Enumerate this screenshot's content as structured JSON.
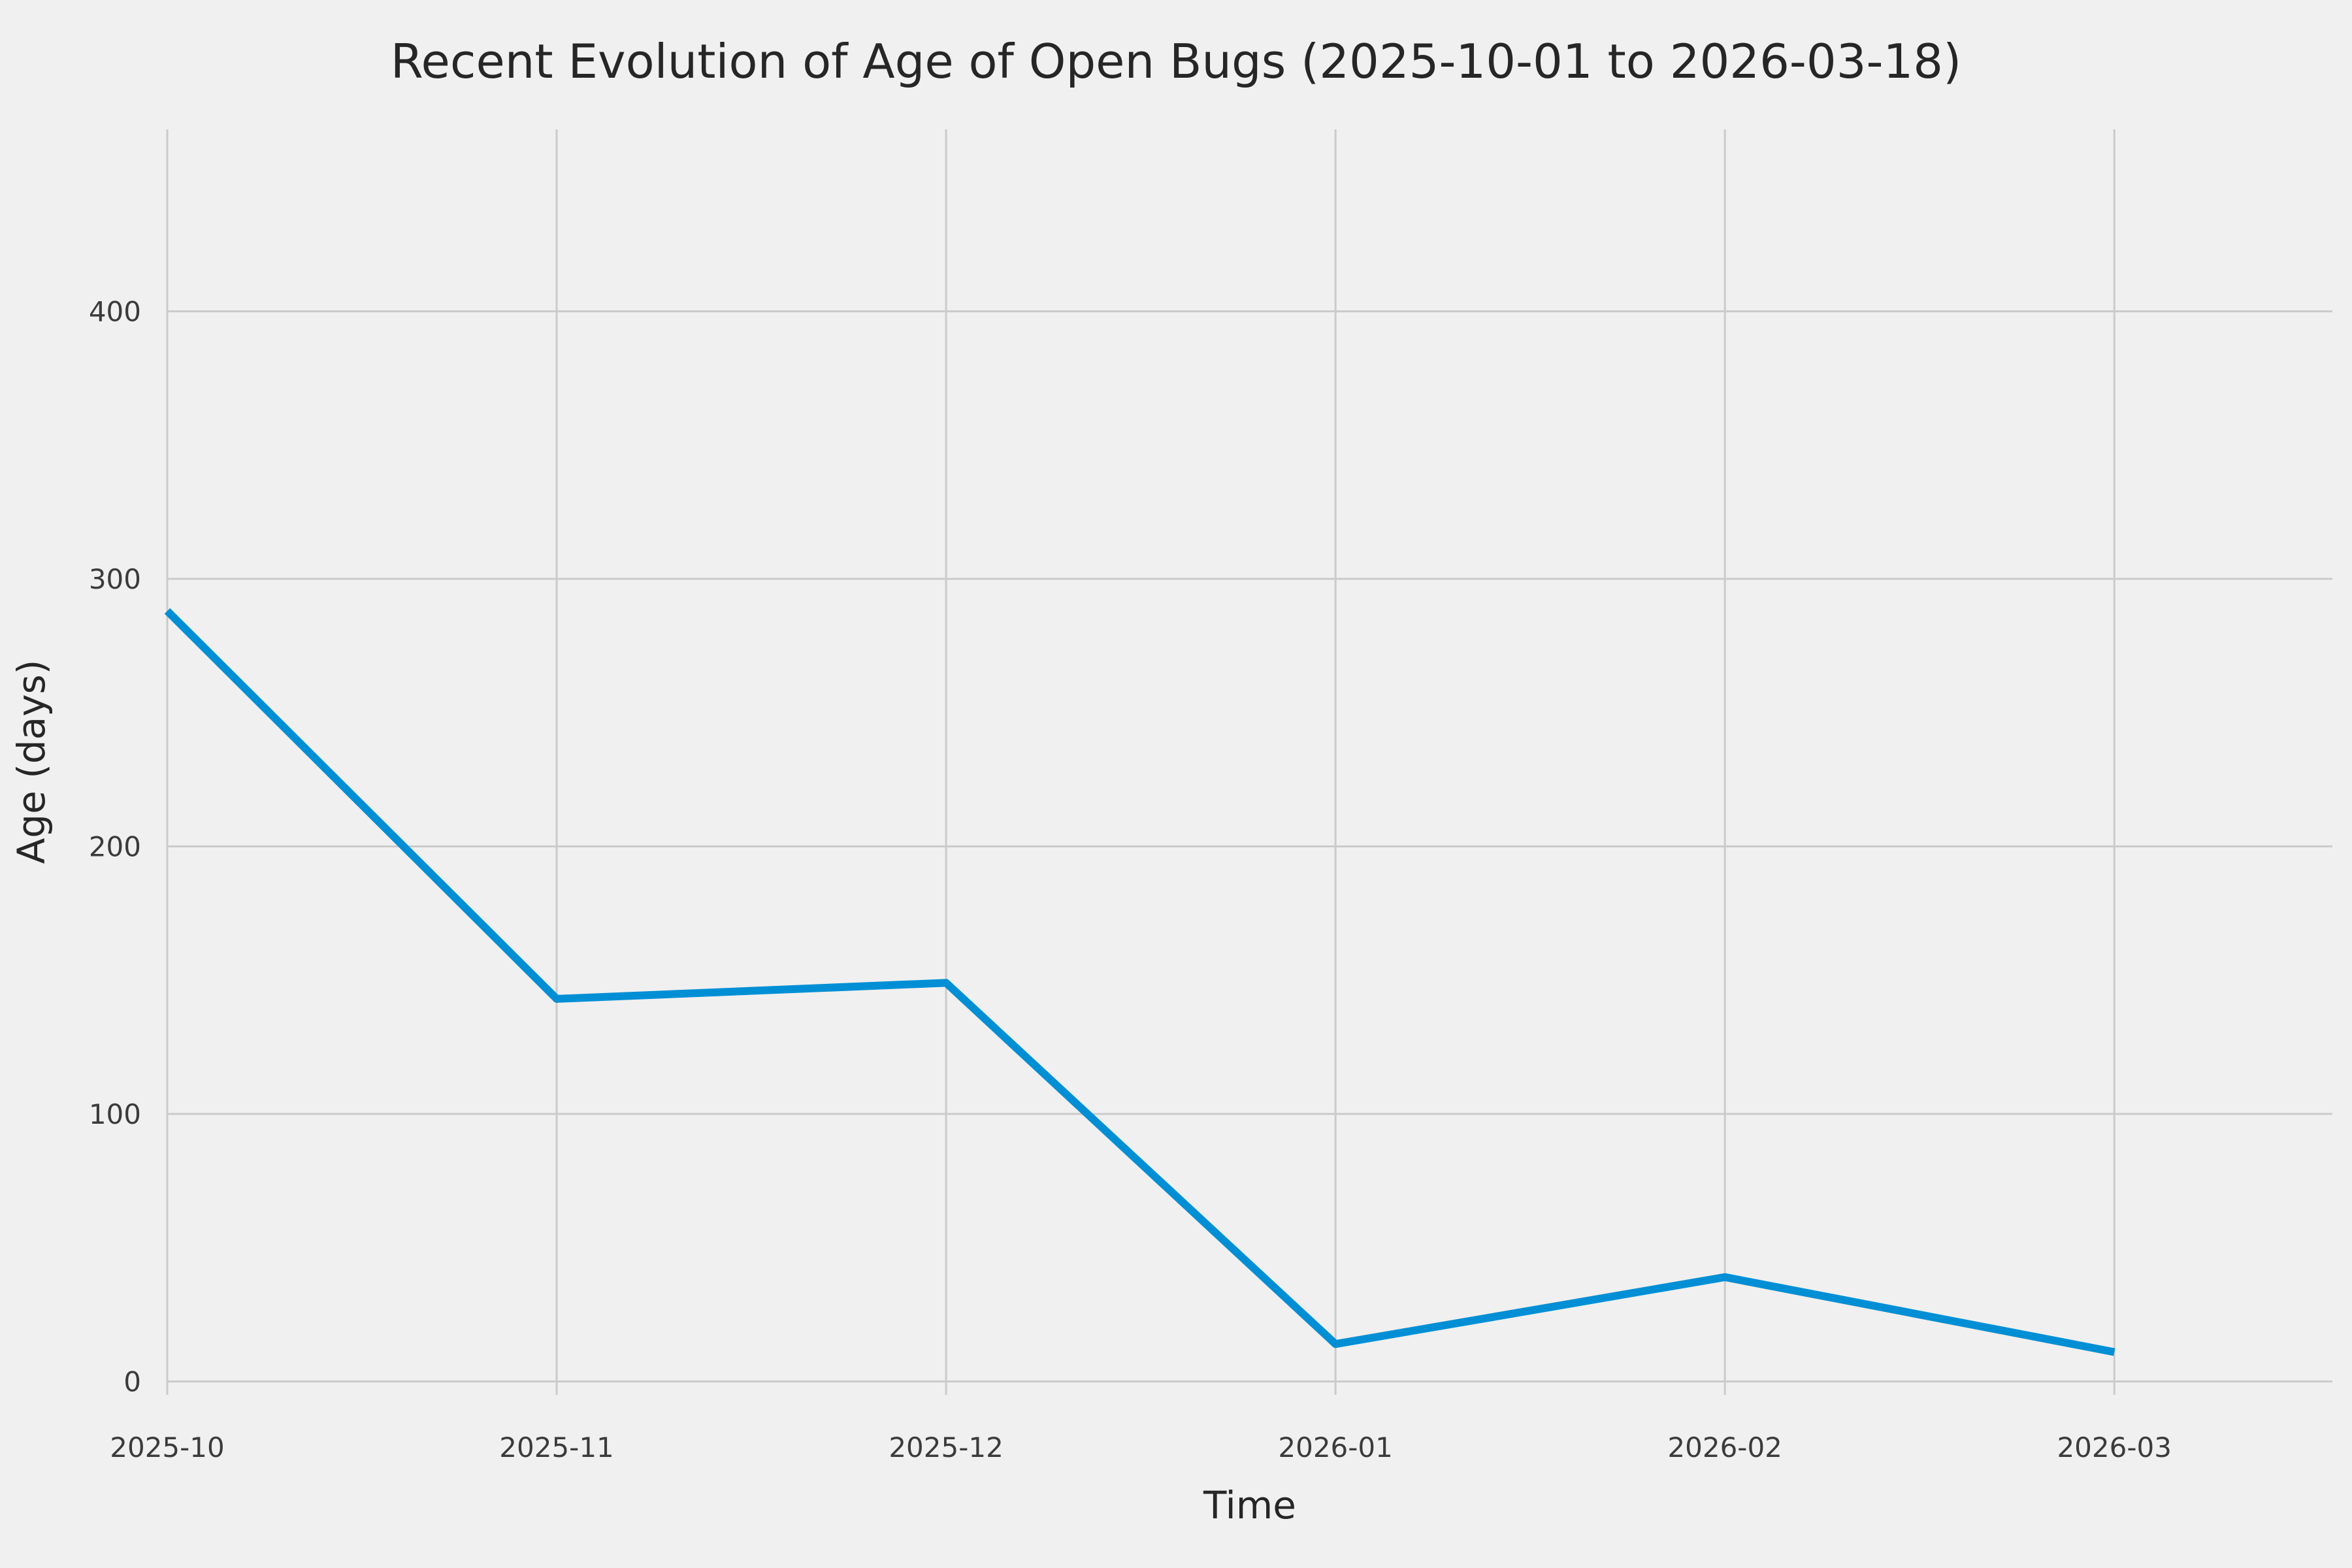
{
  "chart_data": {
    "type": "line",
    "title": "Recent Evolution of Age of Open Bugs (2025-10-01 to 2026-03-18)",
    "xlabel": "Time",
    "ylabel": "Age (days)",
    "categories": [
      "2025-10",
      "2025-11",
      "2025-12",
      "2026-01",
      "2026-02",
      "2026-03"
    ],
    "values": [
      288,
      143,
      149,
      14,
      39,
      11
    ],
    "yticks": [
      0,
      100,
      200,
      300,
      400
    ],
    "ylim": [
      -5,
      468
    ],
    "x_right_pad": 0.56,
    "grid": true,
    "legend": "none",
    "line_color": "#008FD5",
    "grid_color": "#CBCBCB",
    "background_color": "#F0F0F0",
    "text_color": "#3b3b3b"
  }
}
